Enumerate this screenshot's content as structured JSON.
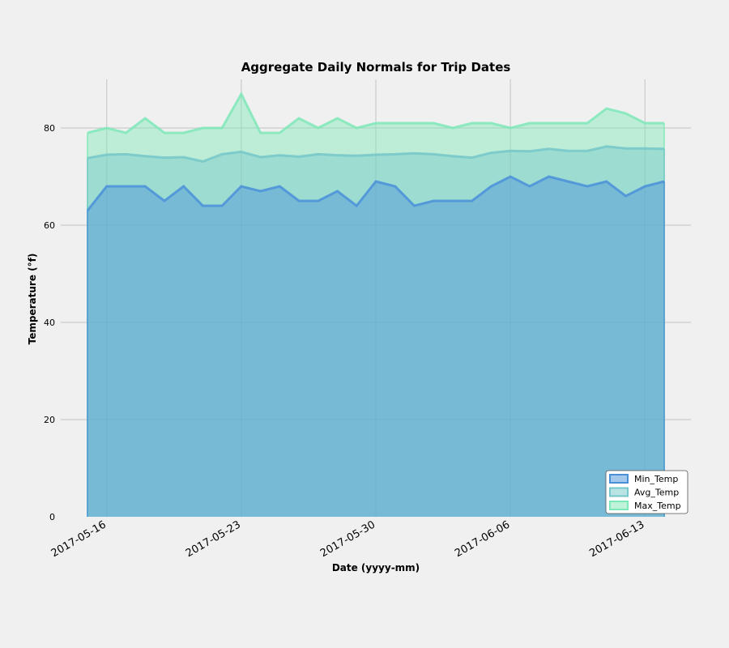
{
  "chart_data": {
    "type": "area",
    "title": "Aggregate Daily Normals for Trip Dates",
    "xlabel": "Date (yyyy-mm)",
    "ylabel": "Temperature (°f)",
    "ylim": [
      0,
      90
    ],
    "yticks": [
      0,
      20,
      40,
      60,
      80
    ],
    "xlim": [
      "2017-05-15",
      "2017-06-14"
    ],
    "x": [
      "2017-05-15",
      "2017-05-16",
      "2017-05-17",
      "2017-05-18",
      "2017-05-19",
      "2017-05-20",
      "2017-05-21",
      "2017-05-22",
      "2017-05-23",
      "2017-05-24",
      "2017-05-25",
      "2017-05-26",
      "2017-05-27",
      "2017-05-28",
      "2017-05-29",
      "2017-05-30",
      "2017-05-31",
      "2017-06-01",
      "2017-06-02",
      "2017-06-03",
      "2017-06-04",
      "2017-06-05",
      "2017-06-06",
      "2017-06-07",
      "2017-06-08",
      "2017-06-09",
      "2017-06-10",
      "2017-06-11",
      "2017-06-12",
      "2017-06-13",
      "2017-06-14"
    ],
    "xticks": [
      "2017-05-16",
      "2017-05-23",
      "2017-05-30",
      "2017-06-06",
      "2017-06-13"
    ],
    "grid": true,
    "legend_position": "lower right",
    "series": [
      {
        "name": "Max_Temp",
        "color": "#7fe8b8",
        "values": [
          79,
          80,
          79,
          82,
          79,
          79,
          80,
          80,
          87,
          79,
          79,
          82,
          80,
          82,
          80,
          81,
          81,
          81,
          81,
          80,
          81,
          81,
          80,
          81,
          81,
          81,
          81,
          84,
          83,
          81,
          81
        ]
      },
      {
        "name": "Avg_Temp",
        "color": "#76c7c9",
        "values": [
          73.8,
          74.5,
          74.6,
          74.2,
          73.9,
          74.0,
          73.1,
          74.6,
          75.1,
          74.0,
          74.4,
          74.1,
          74.6,
          74.4,
          74.3,
          74.5,
          74.6,
          74.8,
          74.6,
          74.2,
          73.9,
          74.9,
          75.3,
          75.2,
          75.7,
          75.3,
          75.3,
          76.2,
          75.8,
          75.8,
          75.7
        ]
      },
      {
        "name": "Min_Temp",
        "color": "#4a90d9",
        "values": [
          63,
          68,
          68,
          68,
          65,
          68,
          64,
          64,
          68,
          67,
          68,
          65,
          65,
          67,
          64,
          69,
          68,
          64,
          65,
          65,
          65,
          68,
          70,
          68,
          70,
          69,
          68,
          69,
          66,
          68,
          69
        ]
      }
    ]
  }
}
